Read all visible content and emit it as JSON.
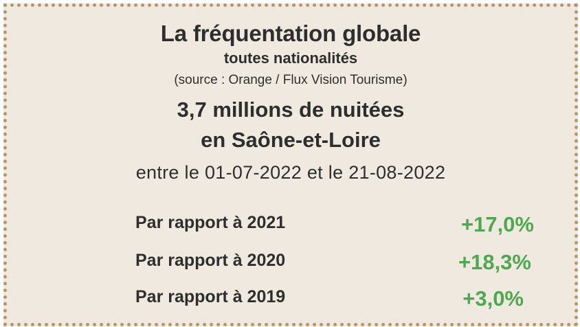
{
  "heading": {
    "title": "La fréquentation globale",
    "subtitle": "toutes nationalités",
    "source": "(source : Orange / Flux Vision Tourisme)",
    "headline_line1": "3,7 millions de nuitées",
    "headline_line2": "en Saône-et-Loire",
    "period": "entre le 01-07-2022 et le 21-08-2022"
  },
  "comparisons": [
    {
      "label": "Par rapport à 2021",
      "value": "+17,0%"
    },
    {
      "label": "Par rapport à 2020",
      "value": "+18,3%"
    },
    {
      "label": "Par rapport à 2019",
      "value": "+3,0%"
    }
  ],
  "colors": {
    "background": "#efe9df",
    "border": "#b89566",
    "text": "#2e2e2e",
    "positive": "#4ea84f"
  }
}
